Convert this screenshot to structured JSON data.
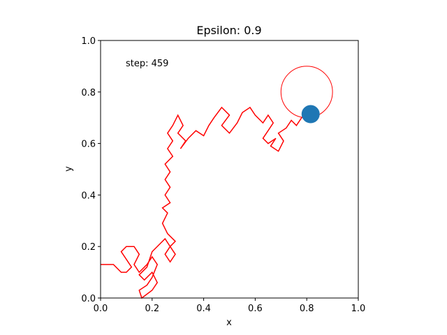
{
  "chart_data": {
    "type": "line",
    "title": "Epsilon: 0.9",
    "xlabel": "x",
    "ylabel": "y",
    "xlim": [
      0.0,
      1.0
    ],
    "ylim": [
      0.0,
      1.0
    ],
    "x_ticks": [
      "0.0",
      "0.2",
      "0.4",
      "0.6",
      "0.8",
      "1.0"
    ],
    "y_ticks": [
      "0.0",
      "0.2",
      "0.4",
      "0.6",
      "0.8",
      "1.0"
    ],
    "grid": false,
    "annotation": "step: 459",
    "series": [
      {
        "color": "#ff0000",
        "points": [
          [
            0.0,
            0.13
          ],
          [
            0.05,
            0.13
          ],
          [
            0.08,
            0.1
          ],
          [
            0.1,
            0.1
          ],
          [
            0.12,
            0.12
          ],
          [
            0.1,
            0.15
          ],
          [
            0.08,
            0.18
          ],
          [
            0.1,
            0.2
          ],
          [
            0.13,
            0.2
          ],
          [
            0.15,
            0.17
          ],
          [
            0.13,
            0.13
          ],
          [
            0.15,
            0.1
          ],
          [
            0.18,
            0.13
          ],
          [
            0.2,
            0.16
          ],
          [
            0.22,
            0.13
          ],
          [
            0.2,
            0.08
          ],
          [
            0.18,
            0.05
          ],
          [
            0.15,
            0.03
          ],
          [
            0.16,
            0.0
          ],
          [
            0.2,
            0.03
          ],
          [
            0.22,
            0.06
          ],
          [
            0.2,
            0.1
          ],
          [
            0.17,
            0.07
          ],
          [
            0.15,
            0.09
          ],
          [
            0.18,
            0.12
          ],
          [
            0.2,
            0.18
          ],
          [
            0.23,
            0.21
          ],
          [
            0.25,
            0.23
          ],
          [
            0.27,
            0.2
          ],
          [
            0.25,
            0.17
          ],
          [
            0.27,
            0.14
          ],
          [
            0.29,
            0.17
          ],
          [
            0.27,
            0.2
          ],
          [
            0.29,
            0.22
          ],
          [
            0.26,
            0.25
          ],
          [
            0.24,
            0.29
          ],
          [
            0.26,
            0.33
          ],
          [
            0.24,
            0.35
          ],
          [
            0.27,
            0.37
          ],
          [
            0.25,
            0.4
          ],
          [
            0.27,
            0.43
          ],
          [
            0.25,
            0.46
          ],
          [
            0.27,
            0.49
          ],
          [
            0.25,
            0.52
          ],
          [
            0.28,
            0.55
          ],
          [
            0.26,
            0.58
          ],
          [
            0.28,
            0.61
          ],
          [
            0.26,
            0.64
          ],
          [
            0.28,
            0.67
          ],
          [
            0.3,
            0.71
          ],
          [
            0.32,
            0.67
          ],
          [
            0.3,
            0.64
          ],
          [
            0.33,
            0.61
          ],
          [
            0.31,
            0.58
          ],
          [
            0.34,
            0.62
          ],
          [
            0.37,
            0.65
          ],
          [
            0.4,
            0.63
          ],
          [
            0.42,
            0.67
          ],
          [
            0.44,
            0.7
          ],
          [
            0.47,
            0.74
          ],
          [
            0.5,
            0.71
          ],
          [
            0.47,
            0.67
          ],
          [
            0.5,
            0.64
          ],
          [
            0.53,
            0.68
          ],
          [
            0.55,
            0.72
          ],
          [
            0.58,
            0.74
          ],
          [
            0.6,
            0.71
          ],
          [
            0.63,
            0.68
          ],
          [
            0.65,
            0.71
          ],
          [
            0.67,
            0.68
          ],
          [
            0.65,
            0.65
          ],
          [
            0.63,
            0.62
          ],
          [
            0.65,
            0.6
          ],
          [
            0.68,
            0.62
          ],
          [
            0.66,
            0.59
          ],
          [
            0.69,
            0.57
          ],
          [
            0.71,
            0.61
          ],
          [
            0.69,
            0.64
          ],
          [
            0.72,
            0.66
          ],
          [
            0.74,
            0.69
          ],
          [
            0.76,
            0.67
          ],
          [
            0.78,
            0.7
          ],
          [
            0.8,
            0.72
          ]
        ]
      }
    ],
    "agent": {
      "x": 0.815,
      "y": 0.714,
      "color": "#1f77b4"
    },
    "target": {
      "x": 0.8,
      "y": 0.8,
      "radius": 0.1,
      "color": "#ff0000"
    }
  }
}
